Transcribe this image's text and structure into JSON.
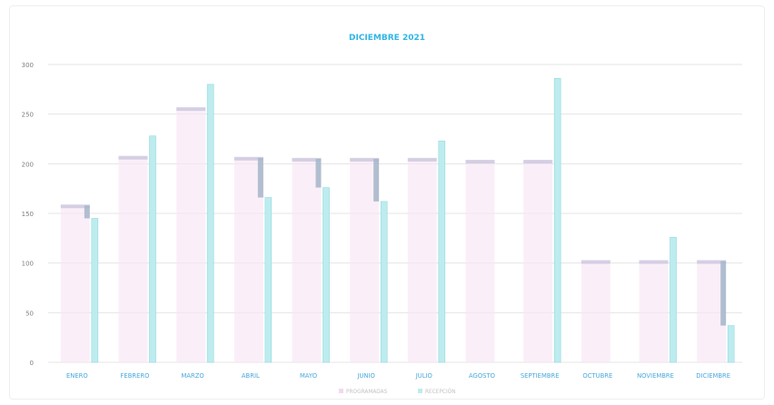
{
  "chart_data": {
    "type": "bar",
    "title": "DICIEMBRE 2021",
    "xlabel": "",
    "ylabel": "",
    "ylim": [
      0,
      300
    ],
    "yticks": [
      0,
      50,
      100,
      150,
      200,
      250,
      300
    ],
    "grid": true,
    "legend_position": "bottom",
    "categories": [
      "ENERO",
      "FEBRERO",
      "MARZO",
      "ABRIL",
      "MAYO",
      "JUNIO",
      "JULIO",
      "AGOSTO",
      "SEPTIEMBRE",
      "OCTUBRE",
      "NOVIEMBRE",
      "DICIEMBRE"
    ],
    "series": [
      {
        "name": "PROGRAMADAS",
        "values": [
          158,
          207,
          256,
          206,
          205,
          205,
          205,
          203,
          203,
          102,
          102,
          102
        ],
        "color": "#f3d9ef"
      },
      {
        "name": "RECEPCIÓN",
        "values": [
          145,
          228,
          280,
          166,
          176,
          162,
          223,
          0,
          286,
          0,
          126,
          37
        ],
        "color": "#bdecef"
      }
    ],
    "gap_ranges": [
      [
        145,
        158
      ],
      [
        207,
        207
      ],
      [
        256,
        256
      ],
      [
        166,
        206
      ],
      [
        176,
        205
      ],
      [
        162,
        205
      ],
      [
        205,
        205
      ],
      [
        203,
        203
      ],
      [
        203,
        203
      ],
      [
        102,
        102
      ],
      [
        102,
        102
      ],
      [
        37,
        102
      ]
    ],
    "colors": {
      "title": "#2eb6e6",
      "axis_text": "#7d7d7d",
      "category_text": "#4aa9db",
      "gridline": "#e5e5e5",
      "programadas_fill": "#f7e7f4",
      "programadas_top": "#c8c3dc",
      "recepcion_fill": "#bdecef",
      "recepcion_edge": "#94d9dd",
      "gap": "#a8b8cb"
    }
  }
}
